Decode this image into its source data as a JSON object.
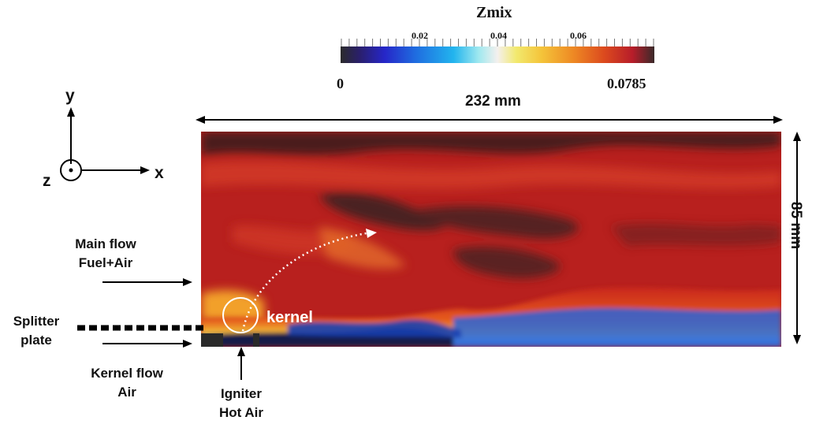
{
  "colorbar": {
    "title": "Zmix",
    "min_label": "0",
    "max_label": "0.0785",
    "ticks": [
      "0.02",
      "0.04",
      "0.06"
    ],
    "tick_values": [
      0.02,
      0.04,
      0.06
    ],
    "range": [
      0,
      0.0785
    ]
  },
  "axes_glyph": {
    "y": "y",
    "x": "x",
    "z": "z"
  },
  "dimensions": {
    "width": "232 mm",
    "height": "85 mm"
  },
  "labels": {
    "main_flow_line1": "Main flow",
    "main_flow_line2": "Fuel+Air",
    "splitter_line1": "Splitter",
    "splitter_line2": "plate",
    "kernel_flow_line1": "Kernel flow",
    "kernel_flow_line2": "Air",
    "igniter_line1": "Igniter",
    "igniter_line2": "Hot Air",
    "kernel": "kernel"
  }
}
